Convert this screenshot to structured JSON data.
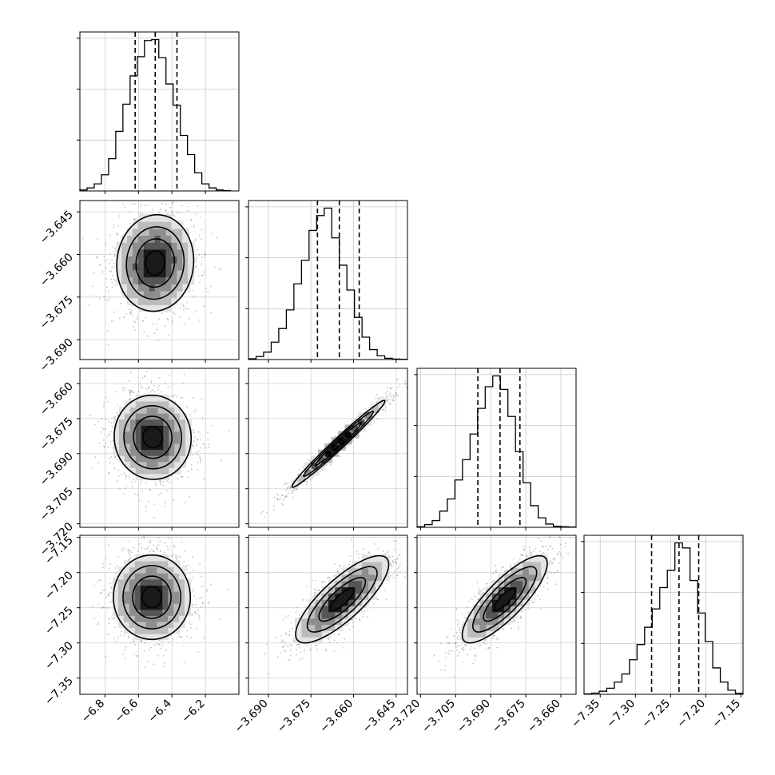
{
  "chart_data": {
    "type": "corner",
    "title": "",
    "n_params": 4,
    "grid": true,
    "params": [
      {
        "xlim": [
          -6.95,
          -6.0
        ],
        "xticks": [
          -6.8,
          -6.6,
          -6.4,
          -6.2
        ],
        "xtick_labels": [
          "−6.8",
          "−6.6",
          "−6.4",
          "−6.2"
        ],
        "quantiles": [
          -6.62,
          -6.5,
          -6.37
        ]
      },
      {
        "xlim": [
          -3.697,
          -3.641
        ],
        "xticks": [
          -3.69,
          -3.675,
          -3.66,
          -3.645
        ],
        "xtick_labels": [
          "−3.690",
          "−3.675",
          "−3.660",
          "−3.645"
        ],
        "quantiles": [
          -3.6727,
          -3.665,
          -3.658
        ]
      },
      {
        "xlim": [
          -3.7215,
          -3.6535
        ],
        "xticks": [
          -3.72,
          -3.705,
          -3.69,
          -3.675,
          -3.66
        ],
        "xtick_labels": [
          "−3.720",
          "−3.705",
          "−3.690",
          "−3.675",
          "−3.660"
        ],
        "quantiles": [
          -3.6955,
          -3.686,
          -3.6775
        ]
      },
      {
        "xlim": [
          -7.373,
          -7.147
        ],
        "xticks": [
          -7.35,
          -7.3,
          -7.25,
          -7.2,
          -7.15
        ],
        "xtick_labels": [
          "−7.35",
          "−7.30",
          "−7.25",
          "−7.20",
          "−7.15"
        ],
        "quantiles": [
          -7.277,
          -7.238,
          -7.21
        ]
      }
    ],
    "y_axes": [
      {
        "row": 1,
        "ylim": [
          -3.697,
          -3.641
        ],
        "yticks": [
          -3.645,
          -3.66,
          -3.675,
          -3.69
        ],
        "ytick_labels": [
          "−3.645",
          "−3.660",
          "−3.675",
          "−3.690"
        ]
      },
      {
        "row": 2,
        "ylim": [
          -3.7215,
          -3.6535
        ],
        "yticks": [
          -3.66,
          -3.675,
          -3.69,
          -3.705,
          -3.72
        ],
        "ytick_labels": [
          "−3.660",
          "−3.675",
          "−3.690",
          "−3.705",
          "−3.720"
        ]
      },
      {
        "row": 3,
        "ylim": [
          -7.373,
          -7.147
        ],
        "yticks": [
          -7.15,
          -7.2,
          -7.25,
          -7.3,
          -7.35
        ],
        "ytick_labels": [
          "−7.15",
          "−7.20",
          "−7.25",
          "−7.30",
          "−7.35"
        ]
      }
    ],
    "histograms": [
      {
        "param": 0,
        "edges_range": [
          -6.95,
          -6.05
        ],
        "counts": [
          5,
          15,
          35,
          80,
          160,
          295,
          430,
          570,
          665,
          745,
          750,
          660,
          530,
          425,
          275,
          180,
          90,
          35,
          15,
          5,
          2
        ]
      },
      {
        "param": 1,
        "edges_range": [
          -3.697,
          -3.641
        ],
        "counts": [
          3,
          12,
          30,
          70,
          125,
          200,
          305,
          400,
          520,
          580,
          610,
          490,
          380,
          280,
          170,
          90,
          40,
          15,
          5,
          2,
          1
        ]
      },
      {
        "param": 2,
        "edges_range": [
          -3.7215,
          -3.6535
        ],
        "counts": [
          2,
          10,
          25,
          60,
          105,
          175,
          250,
          345,
          440,
          520,
          560,
          510,
          410,
          280,
          165,
          80,
          35,
          12,
          4,
          2,
          1
        ]
      },
      {
        "param": 3,
        "edges_range": [
          -7.373,
          -7.147
        ],
        "counts": [
          2,
          6,
          15,
          30,
          60,
          100,
          170,
          245,
          330,
          420,
          525,
          610,
          745,
          720,
          560,
          400,
          260,
          130,
          60,
          20,
          5
        ]
      }
    ],
    "pairs": [
      {
        "x_param": 0,
        "y_param": 1,
        "center": [
          -6.5,
          -3.663
        ],
        "sigma": [
          0.115,
          0.0085
        ],
        "corr": 0.05
      },
      {
        "x_param": 0,
        "y_param": 2,
        "center": [
          -6.515,
          -3.683
        ],
        "sigma": [
          0.115,
          0.009
        ],
        "corr": -0.02
      },
      {
        "x_param": 1,
        "y_param": 2,
        "center": [
          -3.6653,
          -3.6858
        ],
        "sigma": [
          0.0082,
          0.0093
        ],
        "corr": 0.985
      },
      {
        "x_param": 0,
        "y_param": 3,
        "center": [
          -6.52,
          -7.235
        ],
        "sigma": [
          0.115,
          0.03
        ],
        "corr": 0.0
      },
      {
        "x_param": 1,
        "y_param": 3,
        "center": [
          -3.664,
          -7.238
        ],
        "sigma": [
          0.0082,
          0.031
        ],
        "corr": 0.8
      },
      {
        "x_param": 2,
        "y_param": 3,
        "center": [
          -3.684,
          -7.238
        ],
        "sigma": [
          0.0091,
          0.031
        ],
        "corr": 0.82
      }
    ],
    "contour_levels_sigma": [
      0.5,
      1.0,
      1.5,
      2.0
    ]
  }
}
